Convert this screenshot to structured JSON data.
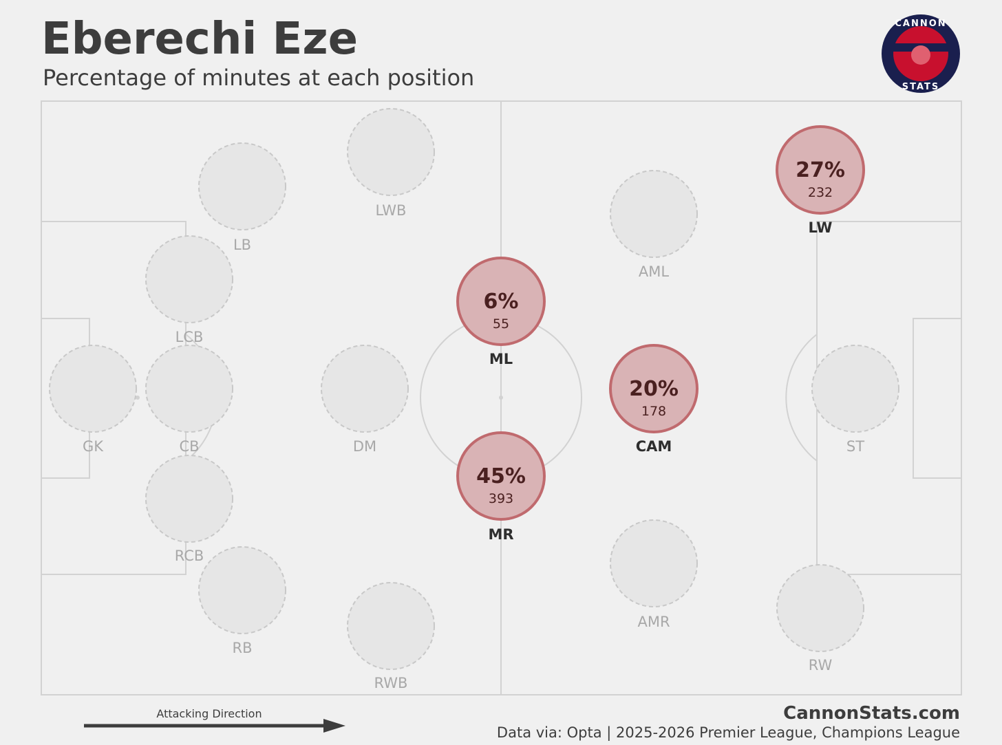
{
  "header": {
    "title": "Eberechi Eze",
    "subtitle": "Percentage of minutes at each position"
  },
  "logo": {
    "top": "CANNON",
    "bottom": "STATS"
  },
  "positions": [
    {
      "label": "GK"
    },
    {
      "label": "LCB"
    },
    {
      "label": "CB"
    },
    {
      "label": "RCB"
    },
    {
      "label": "LB"
    },
    {
      "label": "RB"
    },
    {
      "label": "LWB"
    },
    {
      "label": "RWB"
    },
    {
      "label": "DM"
    },
    {
      "label": "ML",
      "share": "6%",
      "minutes": 55
    },
    {
      "label": "MR",
      "share": "45%",
      "minutes": 393
    },
    {
      "label": "AML"
    },
    {
      "label": "CAM",
      "share": "20%",
      "minutes": 178
    },
    {
      "label": "AMR"
    },
    {
      "label": "LW",
      "share": "27%",
      "minutes": 232
    },
    {
      "label": "RW"
    },
    {
      "label": "ST"
    }
  ],
  "footer": {
    "direction": "Attacking Direction",
    "site": "CannonStats.com",
    "source": "Data via: Opta | 2025-2026 Premier League, Champions League"
  }
}
